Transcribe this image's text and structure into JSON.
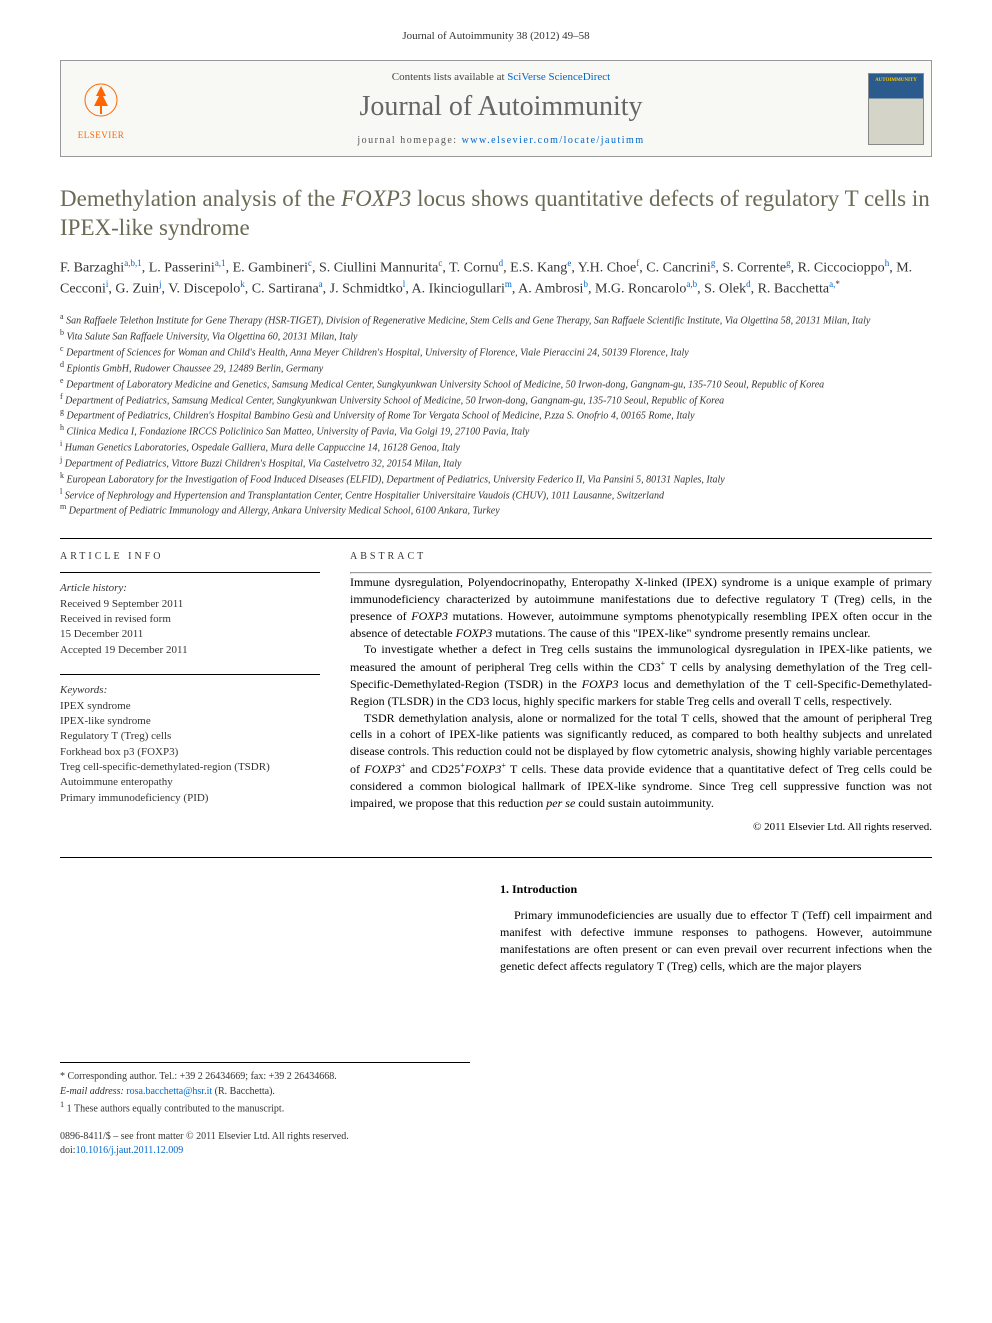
{
  "journal_ref": "Journal of Autoimmunity 38 (2012) 49–58",
  "header": {
    "contents_prefix": "Contents lists available at ",
    "contents_link": "SciVerse ScienceDirect",
    "journal_name": "Journal of Autoimmunity",
    "homepage_prefix": "journal homepage: ",
    "homepage_url": "www.elsevier.com/locate/jautimm",
    "elsevier_label": "ELSEVIER",
    "elsevier_logo_color": "#ff6600",
    "cover_top_color": "#2a5b8c",
    "cover_bottom_color": "#d4d4c8"
  },
  "title": {
    "pre": "Demethylation analysis of the ",
    "italic": "FOXP3",
    "post": " locus shows quantitative defects of regulatory T cells in IPEX-like syndrome"
  },
  "authors_html": "F. Barzaghi<sup>a,b,1</sup>, L. Passerini<sup>a,1</sup>, E. Gambineri<sup>c</sup>, S. Ciullini Mannurita<sup>c</sup>, T. Cornu<sup>d</sup>, E.S. Kang<sup>e</sup>, Y.H. Choe<sup>f</sup>, C. Cancrini<sup>g</sup>, S. Corrente<sup>g</sup>, R. Ciccocioppo<sup>h</sup>, M. Cecconi<sup>i</sup>, G. Zuin<sup>j</sup>, V. Discepolo<sup>k</sup>, C. Sartirana<sup>a</sup>, J. Schmidtko<sup>l</sup>, A. Ikinciogullari<sup>m</sup>, A. Ambrosi<sup>b</sup>, M.G. Roncarolo<sup>a,b</sup>, S. Olek<sup>d</sup>, R. Bacchetta<sup>a,*</sup>",
  "affiliations": [
    {
      "s": "a",
      "t": "San Raffaele Telethon Institute for Gene Therapy (HSR-TIGET), Division of Regenerative Medicine, Stem Cells and Gene Therapy, San Raffaele Scientific Institute, Via Olgettina 58, 20131 Milan, Italy"
    },
    {
      "s": "b",
      "t": "Vita Salute San Raffaele University, Via Olgettina 60, 20131 Milan, Italy"
    },
    {
      "s": "c",
      "t": "Department of Sciences for Woman and Child's Health, Anna Meyer Children's Hospital, University of Florence, Viale Pieraccini 24, 50139 Florence, Italy"
    },
    {
      "s": "d",
      "t": "Epiontis GmbH, Rudower Chaussee 29, 12489 Berlin, Germany"
    },
    {
      "s": "e",
      "t": "Department of Laboratory Medicine and Genetics, Samsung Medical Center, Sungkyunkwan University School of Medicine, 50 Irwon-dong, Gangnam-gu, 135-710 Seoul, Republic of Korea"
    },
    {
      "s": "f",
      "t": "Department of Pediatrics, Samsung Medical Center, Sungkyunkwan University School of Medicine, 50 Irwon-dong, Gangnam-gu, 135-710 Seoul, Republic of Korea"
    },
    {
      "s": "g",
      "t": "Department of Pediatrics, Children's Hospital Bambino Gesù and University of Rome Tor Vergata School of Medicine, P.zza S. Onofrio 4, 00165 Rome, Italy"
    },
    {
      "s": "h",
      "t": "Clinica Medica I, Fondazione IRCCS Policlinico San Matteo, University of Pavia, Via Golgi 19, 27100 Pavia, Italy"
    },
    {
      "s": "i",
      "t": "Human Genetics Laboratories, Ospedale Galliera, Mura delle Cappuccine 14, 16128 Genoa, Italy"
    },
    {
      "s": "j",
      "t": "Department of Pediatrics, Vittore Buzzi Children's Hospital, Via Castelvetro 32, 20154 Milan, Italy"
    },
    {
      "s": "k",
      "t": "European Laboratory for the Investigation of Food Induced Diseases (ELFID), Department of Pediatrics, University Federico II, Via Pansini 5, 80131 Naples, Italy"
    },
    {
      "s": "l",
      "t": "Service of Nephrology and Hypertension and Transplantation Center, Centre Hospitalier Universitaire Vaudois (CHUV), 1011 Lausanne, Switzerland"
    },
    {
      "s": "m",
      "t": "Department of Pediatric Immunology and Allergy, Ankara University Medical School, 6100 Ankara, Turkey"
    }
  ],
  "info_label": "ARTICLE INFO",
  "abstract_label": "ABSTRACT",
  "history": {
    "head": "Article history:",
    "lines": [
      "Received 9 September 2011",
      "Received in revised form",
      "15 December 2011",
      "Accepted 19 December 2011"
    ]
  },
  "keywords": {
    "head": "Keywords:",
    "items": [
      "IPEX syndrome",
      "IPEX-like syndrome",
      "Regulatory T (Treg) cells",
      "Forkhead box p3 (FOXP3)",
      "Treg cell-specific-demethylated-region (TSDR)",
      "Autoimmune enteropathy",
      "Primary immunodeficiency (PID)"
    ]
  },
  "abstract_paragraphs": [
    "Immune dysregulation, Polyendocrinopathy, Enteropathy X-linked (IPEX) syndrome is a unique example of primary immunodeficiency characterized by autoimmune manifestations due to defective regulatory T (Treg) cells, in the presence of FOXP3 mutations. However, autoimmune symptoms phenotypically resembling IPEX often occur in the absence of detectable FOXP3 mutations. The cause of this \"IPEX-like\" syndrome presently remains unclear.",
    "To investigate whether a defect in Treg cells sustains the immunological dysregulation in IPEX-like patients, we measured the amount of peripheral Treg cells within the CD3+ T cells by analysing demethylation of the Treg cell-Specific-Demethylated-Region (TSDR) in the FOXP3 locus and demethylation of the T cell-Specific-Demethylated-Region (TLSDR) in the CD3 locus, highly specific markers for stable Treg cells and overall T cells, respectively.",
    "TSDR demethylation analysis, alone or normalized for the total T cells, showed that the amount of peripheral Treg cells in a cohort of IPEX-like patients was significantly reduced, as compared to both healthy subjects and unrelated disease controls. This reduction could not be displayed by flow cytometric analysis, showing highly variable percentages of FOXP3+ and CD25+FOXP3+ T cells. These data provide evidence that a quantitative defect of Treg cells could be considered a common biological hallmark of IPEX-like syndrome. Since Treg cell suppressive function was not impaired, we propose that this reduction per se could sustain autoimmunity."
  ],
  "copyright": "© 2011 Elsevier Ltd. All rights reserved.",
  "intro": {
    "head": "1. Introduction",
    "text": "Primary immunodeficiencies are usually due to effector T (Teff) cell impairment and manifest with defective immune responses to pathogens. However, autoimmune manifestations are often present or can even prevail over recurrent infections when the genetic defect affects regulatory T (Treg) cells, which are the major players"
  },
  "footnotes": {
    "corresponding": "* Corresponding author. Tel.: +39 2 26434669; fax: +39 2 26434668.",
    "email_label": "E-mail address: ",
    "email": "rosa.bacchetta@hsr.it",
    "email_name": " (R. Bacchetta).",
    "equal": "1 These authors equally contributed to the manuscript."
  },
  "footer": {
    "issn_line": "0896-8411/$ – see front matter © 2011 Elsevier Ltd. All rights reserved.",
    "doi_prefix": "doi:",
    "doi": "10.1016/j.jaut.2011.12.009"
  },
  "colors": {
    "link": "#0066cc",
    "title": "#6a6a55",
    "text": "#000000",
    "muted": "#333333",
    "journal_name": "#666666"
  },
  "typography": {
    "body_fontsize": 13,
    "title_fontsize": 23,
    "journal_name_fontsize": 28,
    "abstract_fontsize": 12,
    "affil_fontsize": 10,
    "section_label_letterspacing": 3
  }
}
